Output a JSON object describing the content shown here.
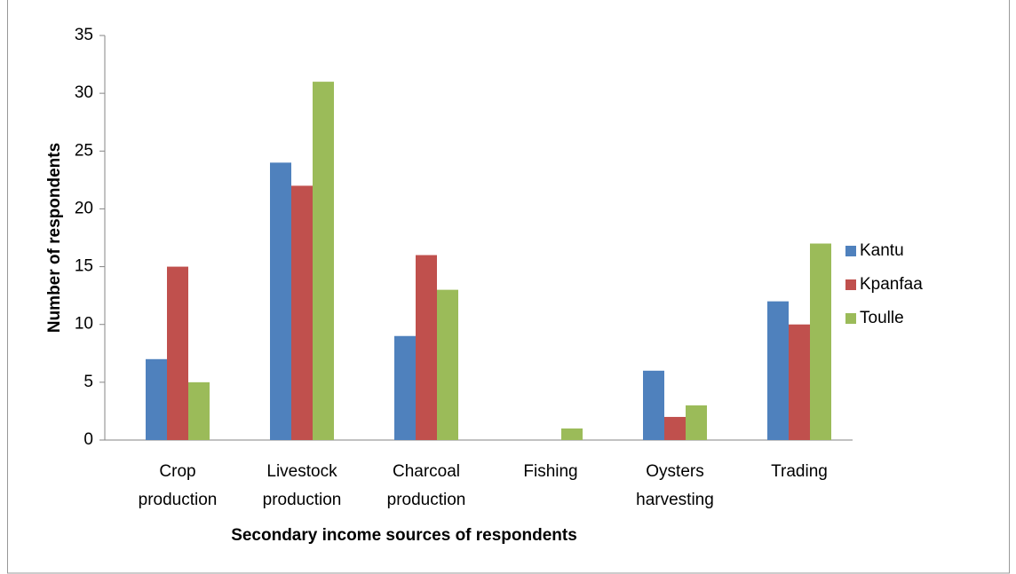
{
  "chart_data": {
    "type": "bar",
    "x_label": "Secondary income sources of respondents",
    "y_label": "Number of respondents",
    "categories": [
      "Crop production",
      "Livestock production",
      "Charcoal production",
      "Fishing",
      "Oysters harvesting",
      "Trading"
    ],
    "series": [
      {
        "name": "Kantu",
        "color": "#4f81bd",
        "values": [
          7,
          24,
          9,
          0,
          6,
          12
        ]
      },
      {
        "name": "Kpanfaa",
        "color": "#c0504d",
        "values": [
          15,
          22,
          16,
          0,
          2,
          10
        ]
      },
      {
        "name": "Toulle",
        "color": "#9bbb59",
        "values": [
          5,
          31,
          13,
          1,
          3,
          17
        ]
      }
    ],
    "ylim": [
      0,
      35
    ],
    "yticks": [
      0,
      5,
      10,
      15,
      20,
      25,
      30,
      35
    ],
    "legend": "right"
  }
}
